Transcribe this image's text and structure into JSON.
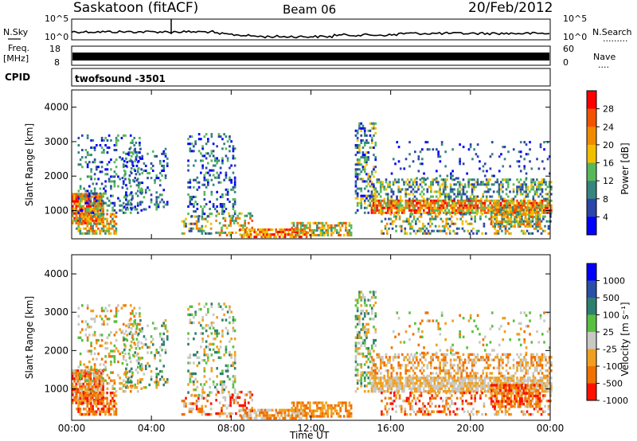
{
  "header": {
    "station": "Saskatoon (fitACF)",
    "beam": "Beam 06",
    "date": "20/Feb/2012"
  },
  "noise_panel": {
    "left_label": "N.Sky",
    "right_label": "N.Search",
    "right_dots": ".........",
    "tick_top": "10^5",
    "tick_bottom": "10^0"
  },
  "freq_panel": {
    "left_label_1": "Freq.",
    "left_label_2": "[MHz]",
    "right_label": "Nave",
    "right_dots": "....",
    "left_tick_top": "18",
    "left_tick_bottom": "8",
    "right_tick_top": "60",
    "right_tick_bottom": "0"
  },
  "cpid_panel": {
    "label": "CPID",
    "value": "twofsound -3501"
  },
  "colors": {
    "power_scale": [
      "#0000ff",
      "#2c45a8",
      "#37857f",
      "#57b85a",
      "#f0c000",
      "#f08a00",
      "#f25300",
      "#ff0000"
    ],
    "velocity_scale": [
      "#0000ff",
      "#2a4fa6",
      "#2f7f6f",
      "#57c040",
      "#c8c8c4",
      "#f0a020",
      "#f07000",
      "#ff1000"
    ]
  },
  "chart_data": [
    {
      "type": "heatmap",
      "panel": "power",
      "ylabel": "Slant Range [km]",
      "ylim": [
        180,
        4500
      ],
      "yticks": [
        "1000",
        "2000",
        "3000",
        "4000"
      ],
      "xlim_hours": [
        0,
        24
      ],
      "colorbar_label": "Power [dB]",
      "colorbar_ticks": [
        "4",
        "8",
        "12",
        "16",
        "20",
        "24",
        "28"
      ],
      "grid": false
    },
    {
      "type": "heatmap",
      "panel": "velocity",
      "ylabel": "Slant Range [km]",
      "ylim": [
        180,
        4500
      ],
      "yticks": [
        "1000",
        "2000",
        "3000",
        "4000"
      ],
      "xlim_hours": [
        0,
        24
      ],
      "colorbar_label": "Velocity [m s⁻¹]",
      "colorbar_ticks": [
        "1000",
        "500",
        "100",
        "25",
        "-25",
        "-100",
        "-500",
        "-1000"
      ],
      "grid": false
    }
  ],
  "xaxis": {
    "label": "Time UT",
    "ticks": [
      "00:00",
      "04:00",
      "08:00",
      "12:00",
      "16:00",
      "20:00",
      "00:00"
    ]
  }
}
